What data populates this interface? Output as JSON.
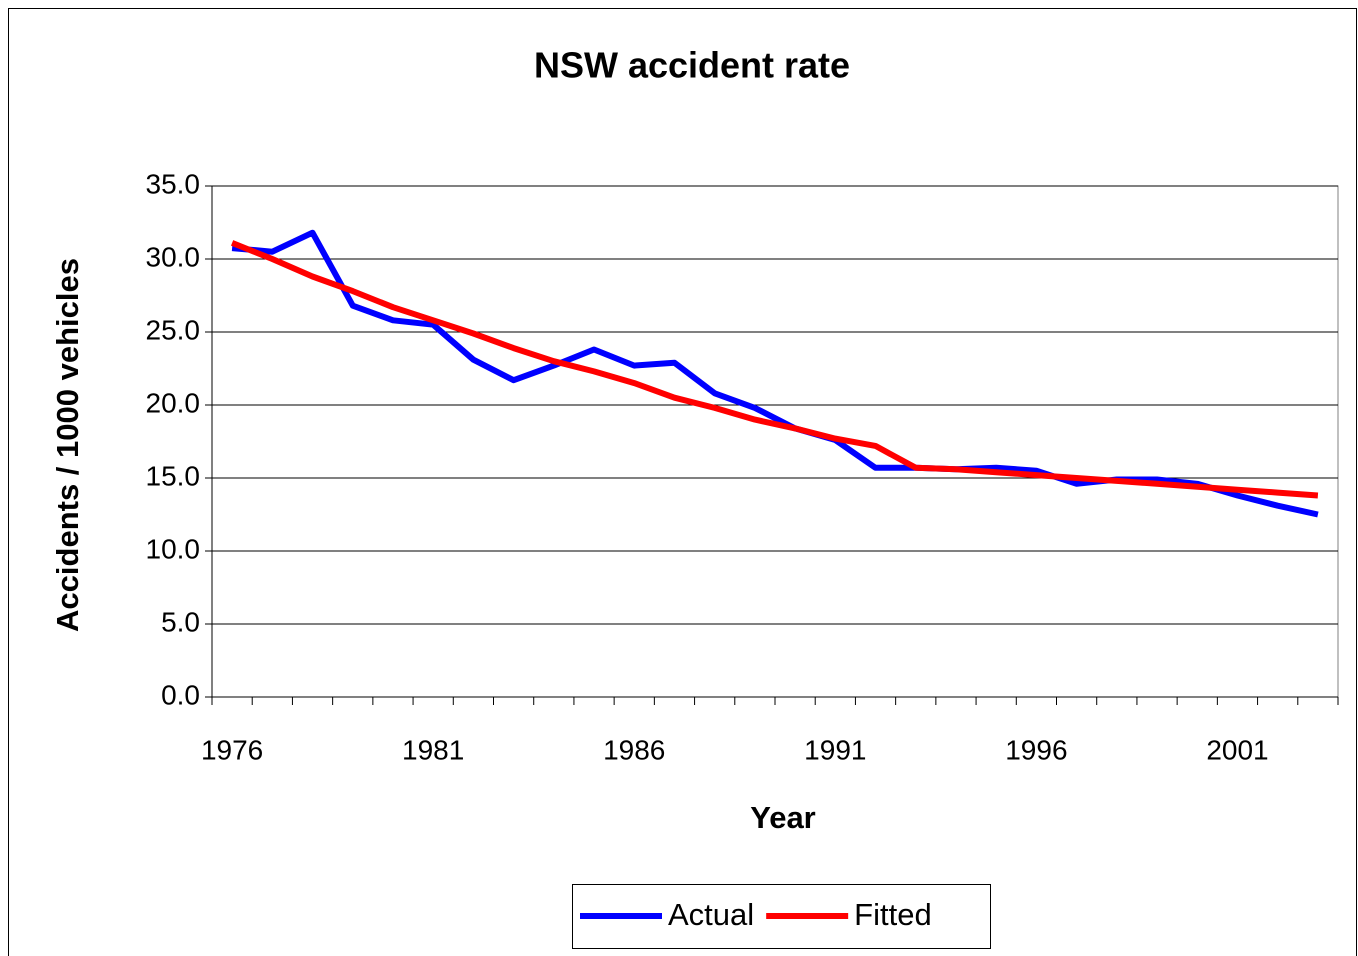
{
  "chart_data": {
    "type": "line",
    "title": "NSW accident rate",
    "x_label": "Year",
    "y_label": "Accidents / 1000 vehicles",
    "categories": [
      "1976",
      null,
      null,
      null,
      null,
      "1981",
      null,
      null,
      null,
      null,
      "1986",
      null,
      null,
      null,
      null,
      "1991",
      null,
      null,
      null,
      null,
      "1996",
      null,
      null,
      null,
      null,
      "2001",
      null,
      null
    ],
    "series": [
      {
        "name": "Actual",
        "color": "#0000ff",
        "values": [
          30.75,
          30.5,
          31.8,
          26.8,
          25.8,
          25.5,
          23.1,
          21.7,
          22.7,
          23.8,
          22.7,
          22.9,
          20.8,
          19.8,
          18.4,
          17.6,
          15.7,
          15.7,
          15.6,
          15.7,
          15.5,
          14.6,
          14.9,
          14.9,
          14.6,
          13.8,
          13.1,
          12.5
        ]
      },
      {
        "name": "Fitted",
        "color": "#ff0000",
        "values": [
          31.1,
          30.0,
          28.8,
          27.8,
          26.7,
          25.8,
          24.9,
          23.9,
          23.0,
          22.3,
          21.5,
          20.5,
          19.8,
          19.0,
          18.4,
          17.7,
          17.2,
          15.7,
          15.6,
          15.4,
          15.2,
          15.0,
          14.8,
          14.6,
          14.4,
          14.2,
          14.0,
          13.8
        ]
      }
    ],
    "ylim": [
      0,
      35
    ],
    "yticks": [
      {
        "value": 0,
        "label": "0.0"
      },
      {
        "value": 5,
        "label": "5.0"
      },
      {
        "value": 10,
        "label": "10.0"
      },
      {
        "value": 15,
        "label": "15.0"
      },
      {
        "value": 20,
        "label": "20.0"
      },
      {
        "value": 25,
        "label": "25.0"
      },
      {
        "value": 30,
        "label": "30.0"
      },
      {
        "value": 35,
        "label": "35.0"
      }
    ],
    "grid": true,
    "legend": "bottom"
  }
}
